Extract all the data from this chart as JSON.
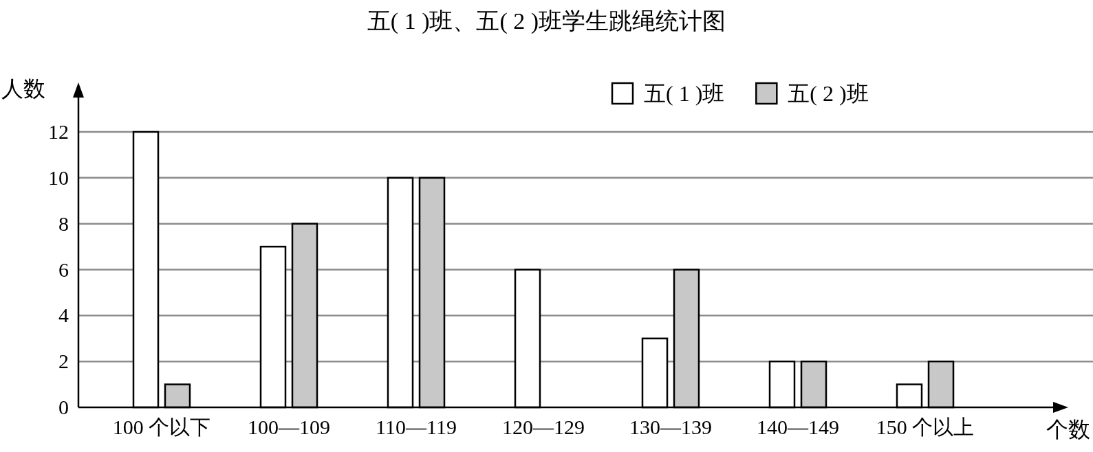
{
  "chart_data": {
    "type": "bar",
    "title": "五( 1 )班、五( 2 )班学生跳绳统计图",
    "xlabel": "个数",
    "ylabel": "人数",
    "categories": [
      "100 个以下",
      "100—109",
      "110—119",
      "120—129",
      "130—139",
      "140—149",
      "150 个以上"
    ],
    "series": [
      {
        "name": "五( 1 )班",
        "color": "#ffffff",
        "values": [
          12,
          7,
          10,
          6,
          3,
          2,
          1
        ]
      },
      {
        "name": "五( 2 )班",
        "color": "#c8c8c8",
        "values": [
          1,
          8,
          10,
          0,
          6,
          2,
          2
        ]
      }
    ],
    "ylim": [
      0,
      12
    ],
    "yticks": [
      0,
      2,
      4,
      6,
      8,
      10,
      12
    ],
    "grid": "y",
    "legend": "top right"
  }
}
